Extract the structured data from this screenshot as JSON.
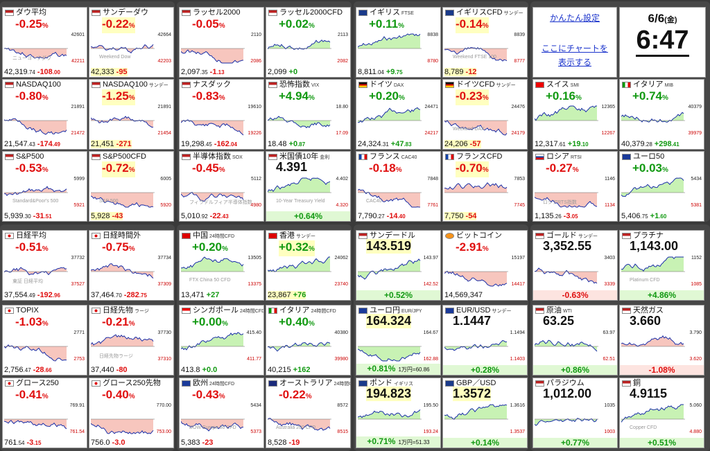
{
  "colors": {
    "up": "#119911",
    "down": "#e01010",
    "line": "#1a2fa8",
    "background": "#3a3a3a"
  },
  "settings": {
    "easy_settings_link": "かんたん設定",
    "chart_link_line1": "ここにチャートを",
    "chart_link_line2": "表示する"
  },
  "clock": {
    "date": "6/6",
    "weekday": "(金)",
    "time": "6:47"
  },
  "cards": [
    {
      "name": "ダウ平均",
      "sub": "",
      "flag": "us",
      "chg": "-0.25",
      "unit": "%",
      "dir": "dn",
      "price": "42,319",
      "dec": ".74",
      "diff": "-108",
      "diffdec": ".00",
      "labels": [
        "42601",
        "42211"
      ],
      "wm": "ニューヨークダウ"
    },
    {
      "name": "サンデーダウ",
      "sub": "",
      "flag": "us",
      "chg": "-0.22",
      "unit": "%",
      "dir": "dn",
      "price": "42,333",
      "dec": "",
      "diff": "-95",
      "diffdec": "",
      "labels": [
        "42664",
        "42203"
      ],
      "hl": true,
      "wm": "Weekend Dow"
    },
    {
      "name": "ラッセル2000",
      "sub": "",
      "flag": "us",
      "chg": "-0.05",
      "unit": "%",
      "dir": "dn",
      "price": "2,097",
      "dec": ".35",
      "diff": "-1",
      "diffdec": ".13",
      "labels": [
        "2110",
        "2086"
      ],
      "wm": ""
    },
    {
      "name": "ラッセル2000CFD",
      "sub": "",
      "flag": "us",
      "chg": "+0.02",
      "unit": "%",
      "dir": "up",
      "price": "2,099",
      "dec": "",
      "diff": "+0",
      "diffdec": "",
      "labels": [
        "2113",
        "2082"
      ],
      "wm": ""
    },
    {
      "name": "イギリス",
      "sub": "FTSE",
      "flag": "uk",
      "chg": "+0.11",
      "unit": "%",
      "dir": "up",
      "price": "8,811",
      "dec": ".04",
      "diff": "+9",
      "diffdec": ".75",
      "labels": [
        "8838",
        "8780"
      ],
      "wm": ""
    },
    {
      "name": "イギリスCFD",
      "sub": "サンデー",
      "flag": "uk",
      "chg": "-0.14",
      "unit": "%",
      "dir": "dn",
      "price": "8,789",
      "dec": "",
      "diff": "-12",
      "diffdec": "",
      "labels": [
        "8839",
        "8777"
      ],
      "hl": true,
      "wm": "Weekend FTSE 100"
    },
    {
      "name": "NASDAQ100",
      "sub": "",
      "flag": "us",
      "chg": "-0.80",
      "unit": "%",
      "dir": "dn",
      "price": "21,547",
      "dec": ".43",
      "diff": "-174",
      "diffdec": ".49",
      "labels": [
        "21891",
        "21472"
      ],
      "wm": ""
    },
    {
      "name": "NASDAQ100",
      "sub": "サンデー",
      "flag": "us",
      "chg": "-1.25",
      "unit": "%",
      "dir": "dn",
      "price": "21,451",
      "dec": "",
      "diff": "-271",
      "diffdec": "",
      "labels": [
        "21891",
        "21454"
      ],
      "hl": true,
      "wm": ""
    },
    {
      "name": "ナスダック",
      "sub": "",
      "flag": "us",
      "chg": "-0.83",
      "unit": "%",
      "dir": "dn",
      "price": "19,298",
      "dec": ".45",
      "diff": "-162",
      "diffdec": ".04",
      "labels": [
        "19610",
        "19226"
      ],
      "wm": ""
    },
    {
      "name": "恐怖指数",
      "sub": "VIX",
      "flag": "us",
      "chg": "+4.94",
      "unit": "%",
      "dir": "up",
      "price": "18.48",
      "dec": "",
      "diff": "+0",
      "diffdec": ".87",
      "labels": [
        "18.80",
        "17.09"
      ],
      "wm": ""
    },
    {
      "name": "ドイツ",
      "sub": "DAX",
      "flag": "de",
      "chg": "+0.20",
      "unit": "%",
      "dir": "up",
      "price": "24,324",
      "dec": ".31",
      "diff": "+47",
      "diffdec": ".83",
      "labels": [
        "24471",
        "24217"
      ],
      "wm": ""
    },
    {
      "name": "ドイツCFD",
      "sub": "サンデー",
      "flag": "de",
      "chg": "-0.23",
      "unit": "%",
      "dir": "dn",
      "price": "24,206",
      "dec": "",
      "diff": "-57",
      "diffdec": "",
      "labels": [
        "24476",
        "24179"
      ],
      "hl": true,
      "wm": "Weekend DAX"
    },
    {
      "name": "スイス",
      "sub": "SMI",
      "flag": "ch",
      "chg": "+0.16",
      "unit": "%",
      "dir": "up",
      "price": "12,317",
      "dec": ".61",
      "diff": "+19",
      "diffdec": ".10",
      "labels": [
        "12365",
        "12267"
      ],
      "wm": ""
    },
    {
      "name": "イタリア",
      "sub": "MIB",
      "flag": "it",
      "chg": "+0.74",
      "unit": "%",
      "dir": "up",
      "price": "40,379",
      "dec": ".28",
      "diff": "+298",
      "diffdec": ".41",
      "labels": [
        "40379",
        "39979"
      ],
      "wm": ""
    },
    {
      "name": "S&P500",
      "sub": "",
      "flag": "us",
      "chg": "-0.53",
      "unit": "%",
      "dir": "dn",
      "price": "5,939",
      "dec": ".30",
      "diff": "-31",
      "diffdec": ".51",
      "labels": [
        "5999",
        "5921"
      ],
      "wm": "Standard&Poor's 500"
    },
    {
      "name": "S&P500CFD",
      "sub": "",
      "flag": "us",
      "chg": "-0.72",
      "unit": "%",
      "dir": "dn",
      "price": "5,928",
      "dec": "",
      "diff": "-43",
      "diffdec": "",
      "labels": [
        "6005",
        "5920"
      ],
      "hl": true,
      "wm": "S&P 500"
    },
    {
      "name": "半導体指数",
      "sub": "SOX",
      "flag": "us",
      "chg": "-0.45",
      "unit": "%",
      "dir": "dn",
      "price": "5,010",
      "dec": ".92",
      "diff": "-22",
      "diffdec": ".43",
      "labels": [
        "5112",
        "4980"
      ],
      "wm": "フィラデルフィア半導体指数"
    },
    {
      "name": "米国債10年",
      "sub": "金利",
      "flag": "us",
      "chg": "4.391",
      "unit": "",
      "dir": "bk",
      "price": "",
      "dec": "",
      "diff": "+0.64%",
      "diffdec": "",
      "labels": [
        "4.402",
        "4.320"
      ],
      "bottomChg": true,
      "wm": "10-Year Treasury Yield"
    },
    {
      "name": "フランス",
      "sub": "CAC40",
      "flag": "fr",
      "chg": "-0.18",
      "unit": "%",
      "dir": "dn",
      "price": "7,790",
      "dec": ".27",
      "diff": "-14",
      "diffdec": ".40",
      "labels": [
        "7848",
        "7761"
      ],
      "wm": "CAC40"
    },
    {
      "name": "フランスCFD",
      "sub": "",
      "flag": "fr",
      "chg": "-0.70",
      "unit": "%",
      "dir": "dn",
      "price": "7,750",
      "dec": "",
      "diff": "-54",
      "diffdec": "",
      "labels": [
        "7853",
        "7745"
      ],
      "hl": true,
      "wm": ""
    },
    {
      "name": "ロシア",
      "sub": "RTSI",
      "flag": "ru",
      "chg": "-0.27",
      "unit": "%",
      "dir": "dn",
      "price": "1,135",
      "dec": ".26",
      "diff": "-3",
      "diffdec": ".05",
      "labels": [
        "1146",
        "1134"
      ],
      "wm": "ロシアRTS指数"
    },
    {
      "name": "ユーロ50",
      "sub": "",
      "flag": "eu",
      "chg": "+0.03",
      "unit": "%",
      "dir": "up",
      "price": "5,406",
      "dec": ".75",
      "diff": "+1",
      "diffdec": ".60",
      "labels": [
        "5434",
        "5381"
      ],
      "wm": ""
    },
    {
      "name": "日経平均",
      "sub": "",
      "flag": "jp",
      "chg": "-0.51",
      "unit": "%",
      "dir": "dn",
      "price": "37,554",
      "dec": ".49",
      "diff": "-192",
      "diffdec": ".96",
      "labels": [
        "37732",
        "37527"
      ],
      "wm": "東証 日経平均"
    },
    {
      "name": "日経時間外",
      "sub": "",
      "flag": "jp",
      "chg": "-0.75",
      "unit": "%",
      "dir": "dn",
      "price": "37,464",
      "dec": ".70",
      "diff": "-282",
      "diffdec": ".75",
      "labels": [
        "37734",
        "37309"
      ],
      "wm": ""
    },
    {
      "name": "中国",
      "sub": "24時間CFD",
      "flag": "cn",
      "chg": "+0.20",
      "unit": "%",
      "dir": "up",
      "price": "13,471",
      "dec": "",
      "diff": "+27",
      "diffdec": "",
      "labels": [
        "13505",
        "13375"
      ],
      "wm": "FTX China 50 CFD"
    },
    {
      "name": "香港",
      "sub": "サンデー",
      "flag": "hk",
      "chg": "+0.32",
      "unit": "%",
      "dir": "up",
      "price": "23,867",
      "dec": "",
      "diff": "+76",
      "diffdec": "",
      "labels": [
        "24062",
        "23740"
      ],
      "hl": true,
      "wm": ""
    },
    {
      "name": "サンデードル",
      "sub": "",
      "flag": "us",
      "chg": "143.519",
      "unit": "",
      "dir": "bk",
      "price": "",
      "dec": "",
      "diff": "+0.52%",
      "diffdec": "",
      "labels": [
        "143.97",
        "142.52"
      ],
      "hl": true,
      "bottomChg": true,
      "wm": ""
    },
    {
      "name": "ビットコイン",
      "sub": "",
      "flag": "btc",
      "chg": "-2.91",
      "unit": "%",
      "dir": "dn",
      "price": "14,569,347",
      "dec": "",
      "diff": "",
      "diffdec": "",
      "labels": [
        "15197",
        "14417"
      ],
      "wm": ""
    },
    {
      "name": "ゴールド",
      "sub": "サンデー",
      "flag": "us",
      "chg": "3,352.55",
      "unit": "",
      "dir": "bk",
      "price": "",
      "dec": "",
      "diff": "-0.63%",
      "diffdec": "",
      "labels": [
        "3403",
        "3339"
      ],
      "bottomChg": true,
      "bdn": true,
      "wm": ""
    },
    {
      "name": "プラチナ",
      "sub": "",
      "flag": "us",
      "chg": "1,143.00",
      "unit": "",
      "dir": "bk",
      "price": "",
      "dec": "",
      "diff": "+4.86%",
      "diffdec": "",
      "labels": [
        "1152",
        "1085"
      ],
      "bottomChg": true,
      "wm": "Platinum CFD"
    },
    {
      "name": "TOPIX",
      "sub": "",
      "flag": "jp",
      "chg": "-1.03",
      "unit": "%",
      "dir": "dn",
      "price": "2,756",
      "dec": ".47",
      "diff": "-28",
      "diffdec": ".66",
      "labels": [
        "2771",
        "2753"
      ],
      "wm": ""
    },
    {
      "name": "日経先物",
      "sub": "ラージ",
      "flag": "jp",
      "chg": "-0.21",
      "unit": "%",
      "dir": "dn",
      "price": "37,440",
      "dec": "",
      "diff": "-80",
      "diffdec": "",
      "labels": [
        "37730",
        "37310"
      ],
      "wm": "日経先物ラージ"
    },
    {
      "name": "シンガポール",
      "sub": "24時間CFD",
      "flag": "sg",
      "chg": "+0.00",
      "unit": "%",
      "dir": "up",
      "price": "413.8",
      "dec": "",
      "diff": "+0.0",
      "diffdec": "",
      "labels": [
        "415.40",
        "411.77"
      ],
      "wm": ""
    },
    {
      "name": "イタリア",
      "sub": "24時間CFD",
      "flag": "it",
      "chg": "+0.40",
      "unit": "%",
      "dir": "up",
      "price": "40,215",
      "dec": "",
      "diff": "+162",
      "diffdec": "",
      "labels": [
        "40380",
        "39980"
      ],
      "wm": ""
    },
    {
      "name": "ユーロ円",
      "sub": "EUR/JPY",
      "flag": "eu",
      "chg": "164.324",
      "unit": "",
      "dir": "bk",
      "price": "",
      "dec": "",
      "diff": "+0.81%",
      "diffdec": "",
      "extra": "1万円=60.86",
      "labels": [
        "164.67",
        "162.88"
      ],
      "hl": true,
      "bottomChg": true,
      "wm": ""
    },
    {
      "name": "EUR/USD",
      "sub": "サンデー",
      "flag": "eu",
      "chg": "1.1447",
      "unit": "",
      "dir": "bk",
      "price": "",
      "dec": "",
      "diff": "+0.28%",
      "diffdec": "",
      "labels": [
        "1.1494",
        "1.1403"
      ],
      "bottomChg": true,
      "wm": ""
    },
    {
      "name": "原油",
      "sub": "WTI",
      "flag": "us",
      "chg": "63.25",
      "unit": "",
      "dir": "bk",
      "price": "",
      "dec": "",
      "diff": "+0.86%",
      "diffdec": "",
      "labels": [
        "63.97",
        "62.51"
      ],
      "bottomChg": true,
      "wm": ""
    },
    {
      "name": "天然ガス",
      "sub": "",
      "flag": "us",
      "chg": "3.660",
      "unit": "",
      "dir": "bk",
      "price": "",
      "dec": "",
      "diff": "-1.08%",
      "diffdec": "",
      "labels": [
        "3.790",
        "3.620"
      ],
      "bottomChg": true,
      "bdn": true,
      "wm": ""
    },
    {
      "name": "グロース250",
      "sub": "",
      "flag": "jp",
      "chg": "-0.41",
      "unit": "%",
      "dir": "dn",
      "price": "761",
      "dec": ".54",
      "diff": "-3",
      "diffdec": ".15",
      "labels": [
        "769.91",
        "761.54"
      ],
      "wm": ""
    },
    {
      "name": "グロース250先物",
      "sub": "",
      "flag": "jp",
      "chg": "-0.40",
      "unit": "%",
      "dir": "dn",
      "price": "756.0",
      "dec": "",
      "diff": "-3.0",
      "diffdec": "",
      "labels": [
        "770.00",
        "753.00"
      ],
      "wm": ""
    },
    {
      "name": "欧州",
      "sub": "24時間CFD",
      "flag": "eu",
      "chg": "-0.43",
      "unit": "%",
      "dir": "dn",
      "price": "5,383",
      "dec": "",
      "diff": "-23",
      "diffdec": "",
      "labels": [
        "5434",
        "5373"
      ],
      "wm": "DOW Europe 50 CFD"
    },
    {
      "name": "オーストラリア",
      "sub": "24時間CFD",
      "flag": "au",
      "chg": "-0.22",
      "unit": "%",
      "dir": "dn",
      "price": "8,528",
      "dec": "",
      "diff": "-19",
      "diffdec": "",
      "labels": [
        "8572",
        "8515"
      ],
      "wm": "Australia 200 CFD"
    },
    {
      "name": "ポンド",
      "sub": "イギリス",
      "flag": "uk",
      "chg": "194.823",
      "unit": "",
      "dir": "bk",
      "price": "",
      "dec": "",
      "diff": "+0.71%",
      "diffdec": "",
      "extra": "1万円=51.33",
      "labels": [
        "195.50",
        "193.24"
      ],
      "hl": true,
      "bottomChg": true,
      "wm": ""
    },
    {
      "name": "GBP／USD",
      "sub": "",
      "flag": "uk",
      "chg": "1.3572",
      "unit": "",
      "dir": "bk",
      "price": "",
      "dec": "",
      "diff": "+0.14%",
      "diffdec": "",
      "labels": [
        "1.3616",
        "1.3537"
      ],
      "hl": true,
      "bottomChg": true,
      "wm": ""
    },
    {
      "name": "パラジウム",
      "sub": "",
      "flag": "us",
      "chg": "1,012.00",
      "unit": "",
      "dir": "bk",
      "price": "",
      "dec": "",
      "diff": "+0.77%",
      "diffdec": "",
      "labels": [
        "1035",
        "1003"
      ],
      "bottomChg": true,
      "wm": ""
    },
    {
      "name": "銅",
      "sub": "",
      "flag": "us",
      "chg": "4.9115",
      "unit": "",
      "dir": "bk",
      "price": "",
      "dec": "",
      "diff": "+0.51%",
      "diffdec": "",
      "labels": [
        "5.060",
        "4.880"
      ],
      "bottomChg": true,
      "wm": "Copper CFD"
    }
  ]
}
